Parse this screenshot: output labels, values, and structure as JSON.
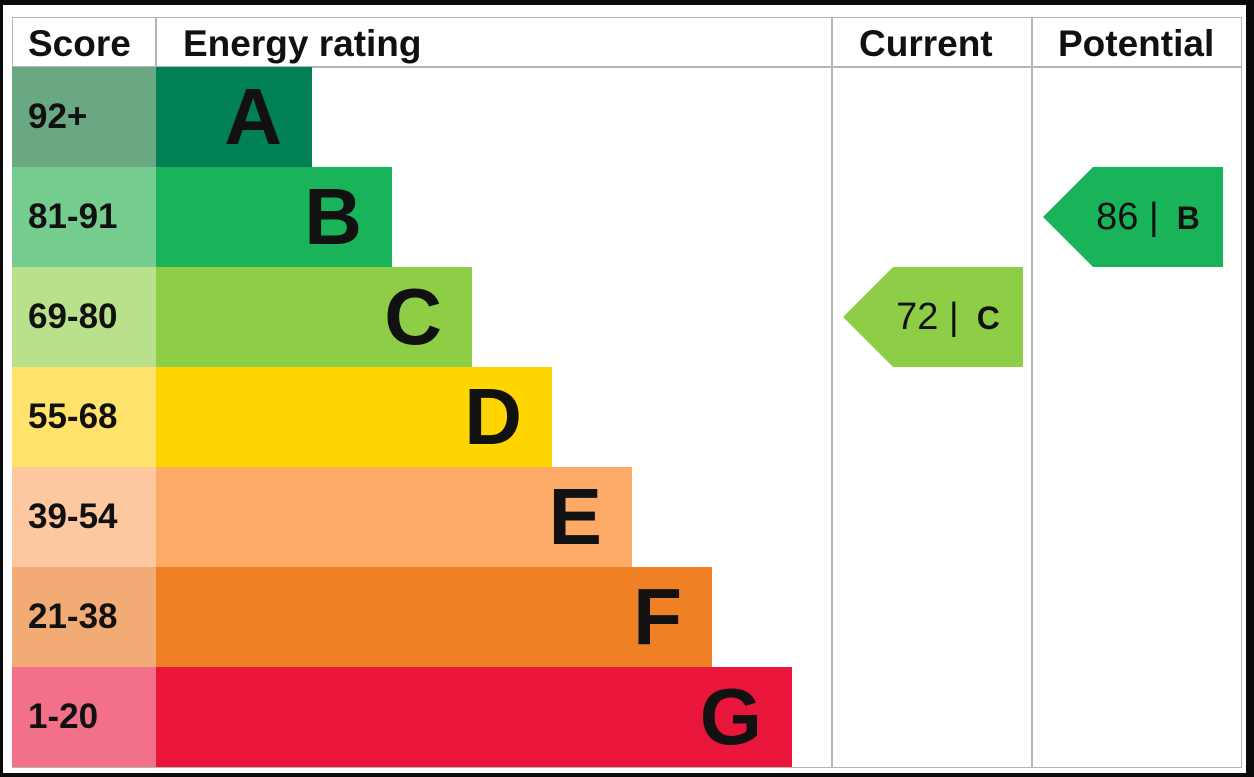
{
  "chart_data": {
    "type": "table",
    "headers": {
      "score": "Score",
      "rating": "Energy rating",
      "current": "Current",
      "potential": "Potential"
    },
    "bands": [
      {
        "letter": "A",
        "range": "92+",
        "color": "#008054",
        "light": "#6aa884"
      },
      {
        "letter": "B",
        "range": "81-91",
        "color": "#19b459",
        "light": "#74cc8f"
      },
      {
        "letter": "C",
        "range": "69-80",
        "color": "#8dce46",
        "light": "#b9e08a"
      },
      {
        "letter": "D",
        "range": "55-68",
        "color": "#ffd500",
        "light": "#ffe36b"
      },
      {
        "letter": "E",
        "range": "39-54",
        "color": "#fcaa65",
        "light": "#fdc8a0"
      },
      {
        "letter": "F",
        "range": "21-38",
        "color": "#ef8023",
        "light": "#f2ab74"
      },
      {
        "letter": "G",
        "range": "1-20",
        "color": "#e9153b",
        "light": "#f2708a"
      }
    ],
    "current": {
      "score": "72",
      "separator": "|",
      "letter": "C",
      "band_index": 2,
      "color": "#8dce46"
    },
    "potential": {
      "score": "86",
      "separator": "|",
      "letter": "B",
      "band_index": 1,
      "color": "#19b459"
    }
  }
}
